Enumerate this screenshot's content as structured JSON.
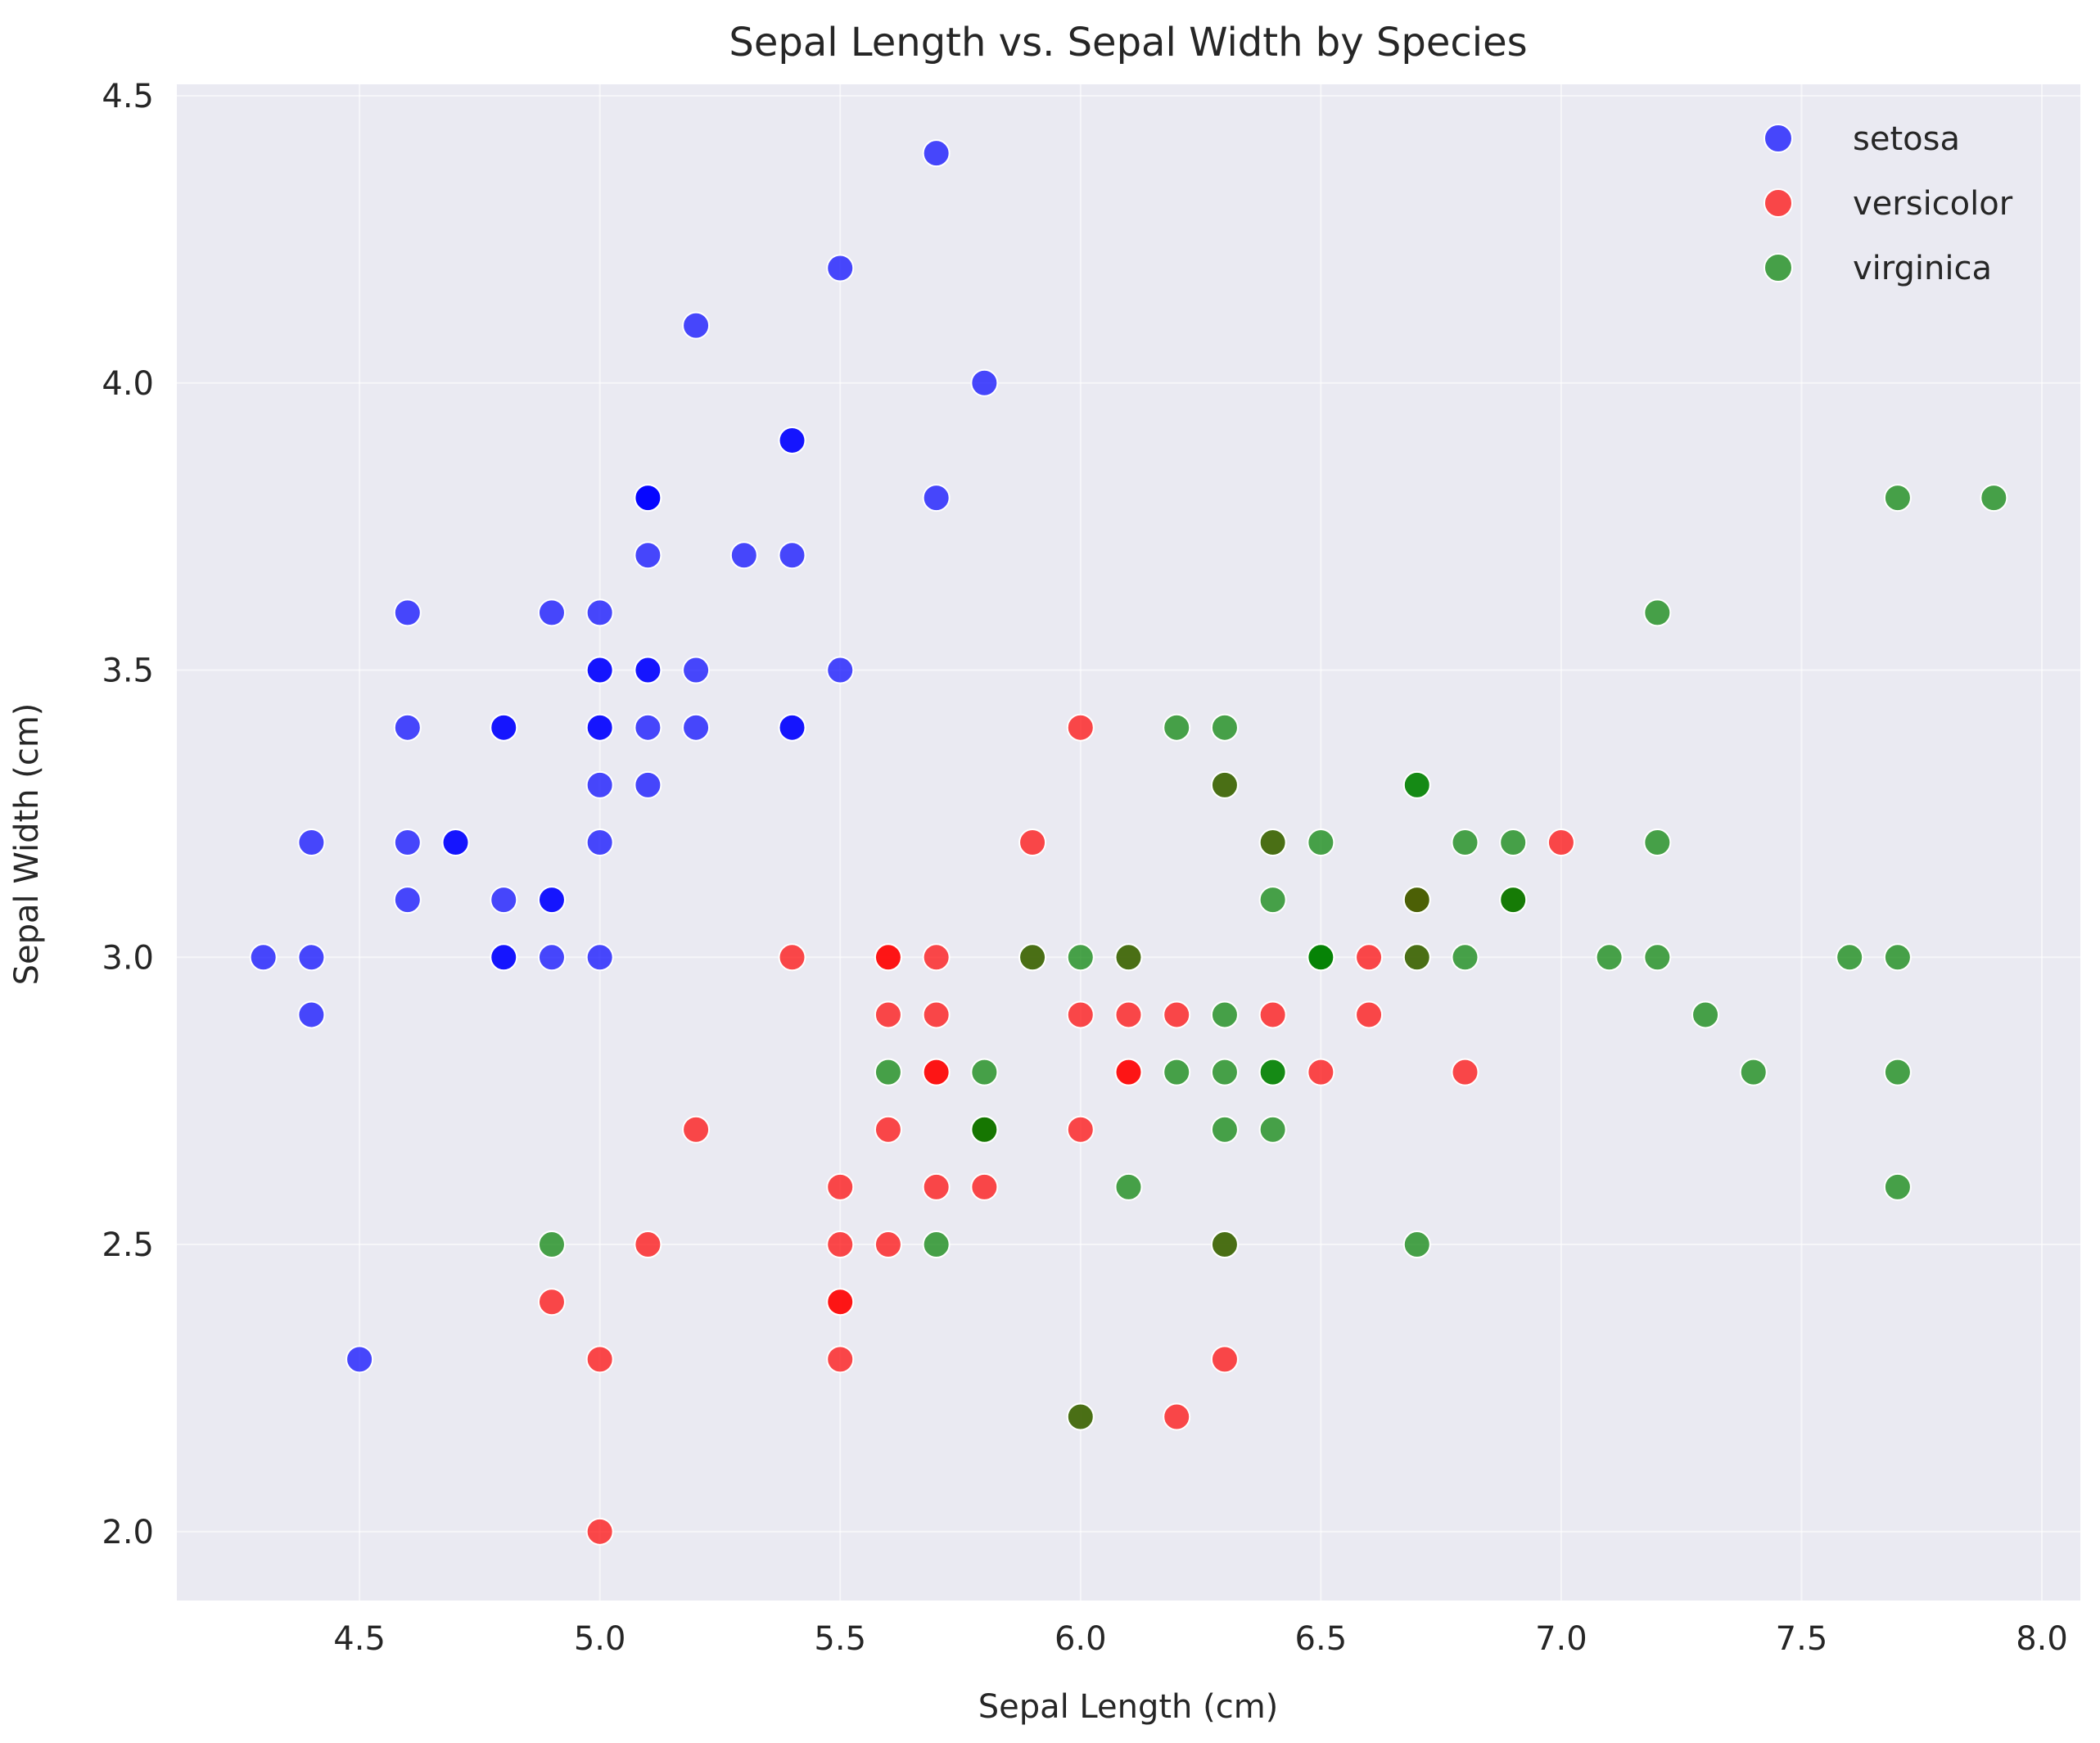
{
  "chart_data": {
    "type": "scatter",
    "title": "Sepal Length vs. Sepal Width by Species",
    "xlabel": "Sepal Length (cm)",
    "ylabel": "Sepal Width (cm)",
    "xlim": [
      4.12,
      8.08
    ],
    "ylim": [
      1.88,
      4.52
    ],
    "xticks": [
      4.5,
      5.0,
      5.5,
      6.0,
      6.5,
      7.0,
      7.5,
      8.0
    ],
    "xtick_labels": [
      "4.5",
      "5.0",
      "5.5",
      "6.0",
      "6.5",
      "7.0",
      "7.5",
      "8.0"
    ],
    "yticks": [
      2.0,
      2.5,
      3.0,
      3.5,
      4.0,
      4.5
    ],
    "ytick_labels": [
      "2.0",
      "2.5",
      "3.0",
      "3.5",
      "4.0",
      "4.5"
    ],
    "grid": true,
    "legend_position": "top-right",
    "series": [
      {
        "name": "setosa",
        "color": "#0000ff",
        "points": [
          [
            5.1,
            3.5
          ],
          [
            4.9,
            3.0
          ],
          [
            4.7,
            3.2
          ],
          [
            4.6,
            3.1
          ],
          [
            5.0,
            3.6
          ],
          [
            5.4,
            3.9
          ],
          [
            4.6,
            3.4
          ],
          [
            5.0,
            3.4
          ],
          [
            4.4,
            2.9
          ],
          [
            4.9,
            3.1
          ],
          [
            5.4,
            3.7
          ],
          [
            4.8,
            3.4
          ],
          [
            4.8,
            3.0
          ],
          [
            4.3,
            3.0
          ],
          [
            5.8,
            4.0
          ],
          [
            5.7,
            4.4
          ],
          [
            5.4,
            3.9
          ],
          [
            5.1,
            3.5
          ],
          [
            5.7,
            3.8
          ],
          [
            5.1,
            3.8
          ],
          [
            5.4,
            3.4
          ],
          [
            5.1,
            3.7
          ],
          [
            4.6,
            3.6
          ],
          [
            5.1,
            3.3
          ],
          [
            4.8,
            3.4
          ],
          [
            5.0,
            3.0
          ],
          [
            5.0,
            3.4
          ],
          [
            5.2,
            3.5
          ],
          [
            5.2,
            3.4
          ],
          [
            4.7,
            3.2
          ],
          [
            4.8,
            3.1
          ],
          [
            5.4,
            3.4
          ],
          [
            5.2,
            4.1
          ],
          [
            5.5,
            4.2
          ],
          [
            4.9,
            3.1
          ],
          [
            5.0,
            3.2
          ],
          [
            5.5,
            3.5
          ],
          [
            4.9,
            3.6
          ],
          [
            4.4,
            3.0
          ],
          [
            5.1,
            3.4
          ],
          [
            5.0,
            3.5
          ],
          [
            4.5,
            2.3
          ],
          [
            4.4,
            3.2
          ],
          [
            5.0,
            3.5
          ],
          [
            5.1,
            3.8
          ],
          [
            4.8,
            3.0
          ],
          [
            5.1,
            3.8
          ],
          [
            4.6,
            3.2
          ],
          [
            5.3,
            3.7
          ],
          [
            5.0,
            3.3
          ]
        ]
      },
      {
        "name": "versicolor",
        "color": "#ff0000",
        "points": [
          [
            7.0,
            3.2
          ],
          [
            6.4,
            3.2
          ],
          [
            6.9,
            3.1
          ],
          [
            5.5,
            2.3
          ],
          [
            6.5,
            2.8
          ],
          [
            5.7,
            2.8
          ],
          [
            6.3,
            3.3
          ],
          [
            4.9,
            2.4
          ],
          [
            6.6,
            2.9
          ],
          [
            5.2,
            2.7
          ],
          [
            5.0,
            2.0
          ],
          [
            5.9,
            3.0
          ],
          [
            6.0,
            2.2
          ],
          [
            6.1,
            2.9
          ],
          [
            5.6,
            2.9
          ],
          [
            6.7,
            3.1
          ],
          [
            5.6,
            3.0
          ],
          [
            5.8,
            2.7
          ],
          [
            6.2,
            2.2
          ],
          [
            5.6,
            2.5
          ],
          [
            5.9,
            3.2
          ],
          [
            6.1,
            2.8
          ],
          [
            6.3,
            2.5
          ],
          [
            6.1,
            2.8
          ],
          [
            6.4,
            2.9
          ],
          [
            6.6,
            3.0
          ],
          [
            6.8,
            2.8
          ],
          [
            6.7,
            3.0
          ],
          [
            6.0,
            2.9
          ],
          [
            5.7,
            2.6
          ],
          [
            5.5,
            2.4
          ],
          [
            5.5,
            2.4
          ],
          [
            5.8,
            2.7
          ],
          [
            6.0,
            2.7
          ],
          [
            5.4,
            3.0
          ],
          [
            6.0,
            3.4
          ],
          [
            6.7,
            3.1
          ],
          [
            6.3,
            2.3
          ],
          [
            5.6,
            3.0
          ],
          [
            5.5,
            2.5
          ],
          [
            5.5,
            2.6
          ],
          [
            6.1,
            3.0
          ],
          [
            5.8,
            2.6
          ],
          [
            5.0,
            2.3
          ],
          [
            5.6,
            2.7
          ],
          [
            5.7,
            3.0
          ],
          [
            5.7,
            2.9
          ],
          [
            6.2,
            2.9
          ],
          [
            5.1,
            2.5
          ],
          [
            5.7,
            2.8
          ]
        ]
      },
      {
        "name": "virginica",
        "color": "#008000",
        "points": [
          [
            6.3,
            3.3
          ],
          [
            5.8,
            2.7
          ],
          [
            7.1,
            3.0
          ],
          [
            6.3,
            2.9
          ],
          [
            6.5,
            3.0
          ],
          [
            7.6,
            3.0
          ],
          [
            4.9,
            2.5
          ],
          [
            7.3,
            2.9
          ],
          [
            6.7,
            2.5
          ],
          [
            7.2,
            3.6
          ],
          [
            6.5,
            3.2
          ],
          [
            6.4,
            2.7
          ],
          [
            6.8,
            3.0
          ],
          [
            5.7,
            2.5
          ],
          [
            5.8,
            2.8
          ],
          [
            6.4,
            3.2
          ],
          [
            6.5,
            3.0
          ],
          [
            7.7,
            3.8
          ],
          [
            7.7,
            2.6
          ],
          [
            6.0,
            2.2
          ],
          [
            6.9,
            3.2
          ],
          [
            5.6,
            2.8
          ],
          [
            7.7,
            2.8
          ],
          [
            6.3,
            2.7
          ],
          [
            6.7,
            3.3
          ],
          [
            7.2,
            3.2
          ],
          [
            6.2,
            2.8
          ],
          [
            6.1,
            3.0
          ],
          [
            6.4,
            2.8
          ],
          [
            7.2,
            3.0
          ],
          [
            7.4,
            2.8
          ],
          [
            7.9,
            3.8
          ],
          [
            6.4,
            2.8
          ],
          [
            6.3,
            2.8
          ],
          [
            6.1,
            2.6
          ],
          [
            7.7,
            3.0
          ],
          [
            6.3,
            3.4
          ],
          [
            6.4,
            3.1
          ],
          [
            6.0,
            3.0
          ],
          [
            6.9,
            3.1
          ],
          [
            6.7,
            3.1
          ],
          [
            6.9,
            3.1
          ],
          [
            5.8,
            2.7
          ],
          [
            6.8,
            3.2
          ],
          [
            6.7,
            3.3
          ],
          [
            6.7,
            3.0
          ],
          [
            6.3,
            2.5
          ],
          [
            6.5,
            3.0
          ],
          [
            6.2,
            3.4
          ],
          [
            5.9,
            3.0
          ]
        ]
      }
    ]
  }
}
